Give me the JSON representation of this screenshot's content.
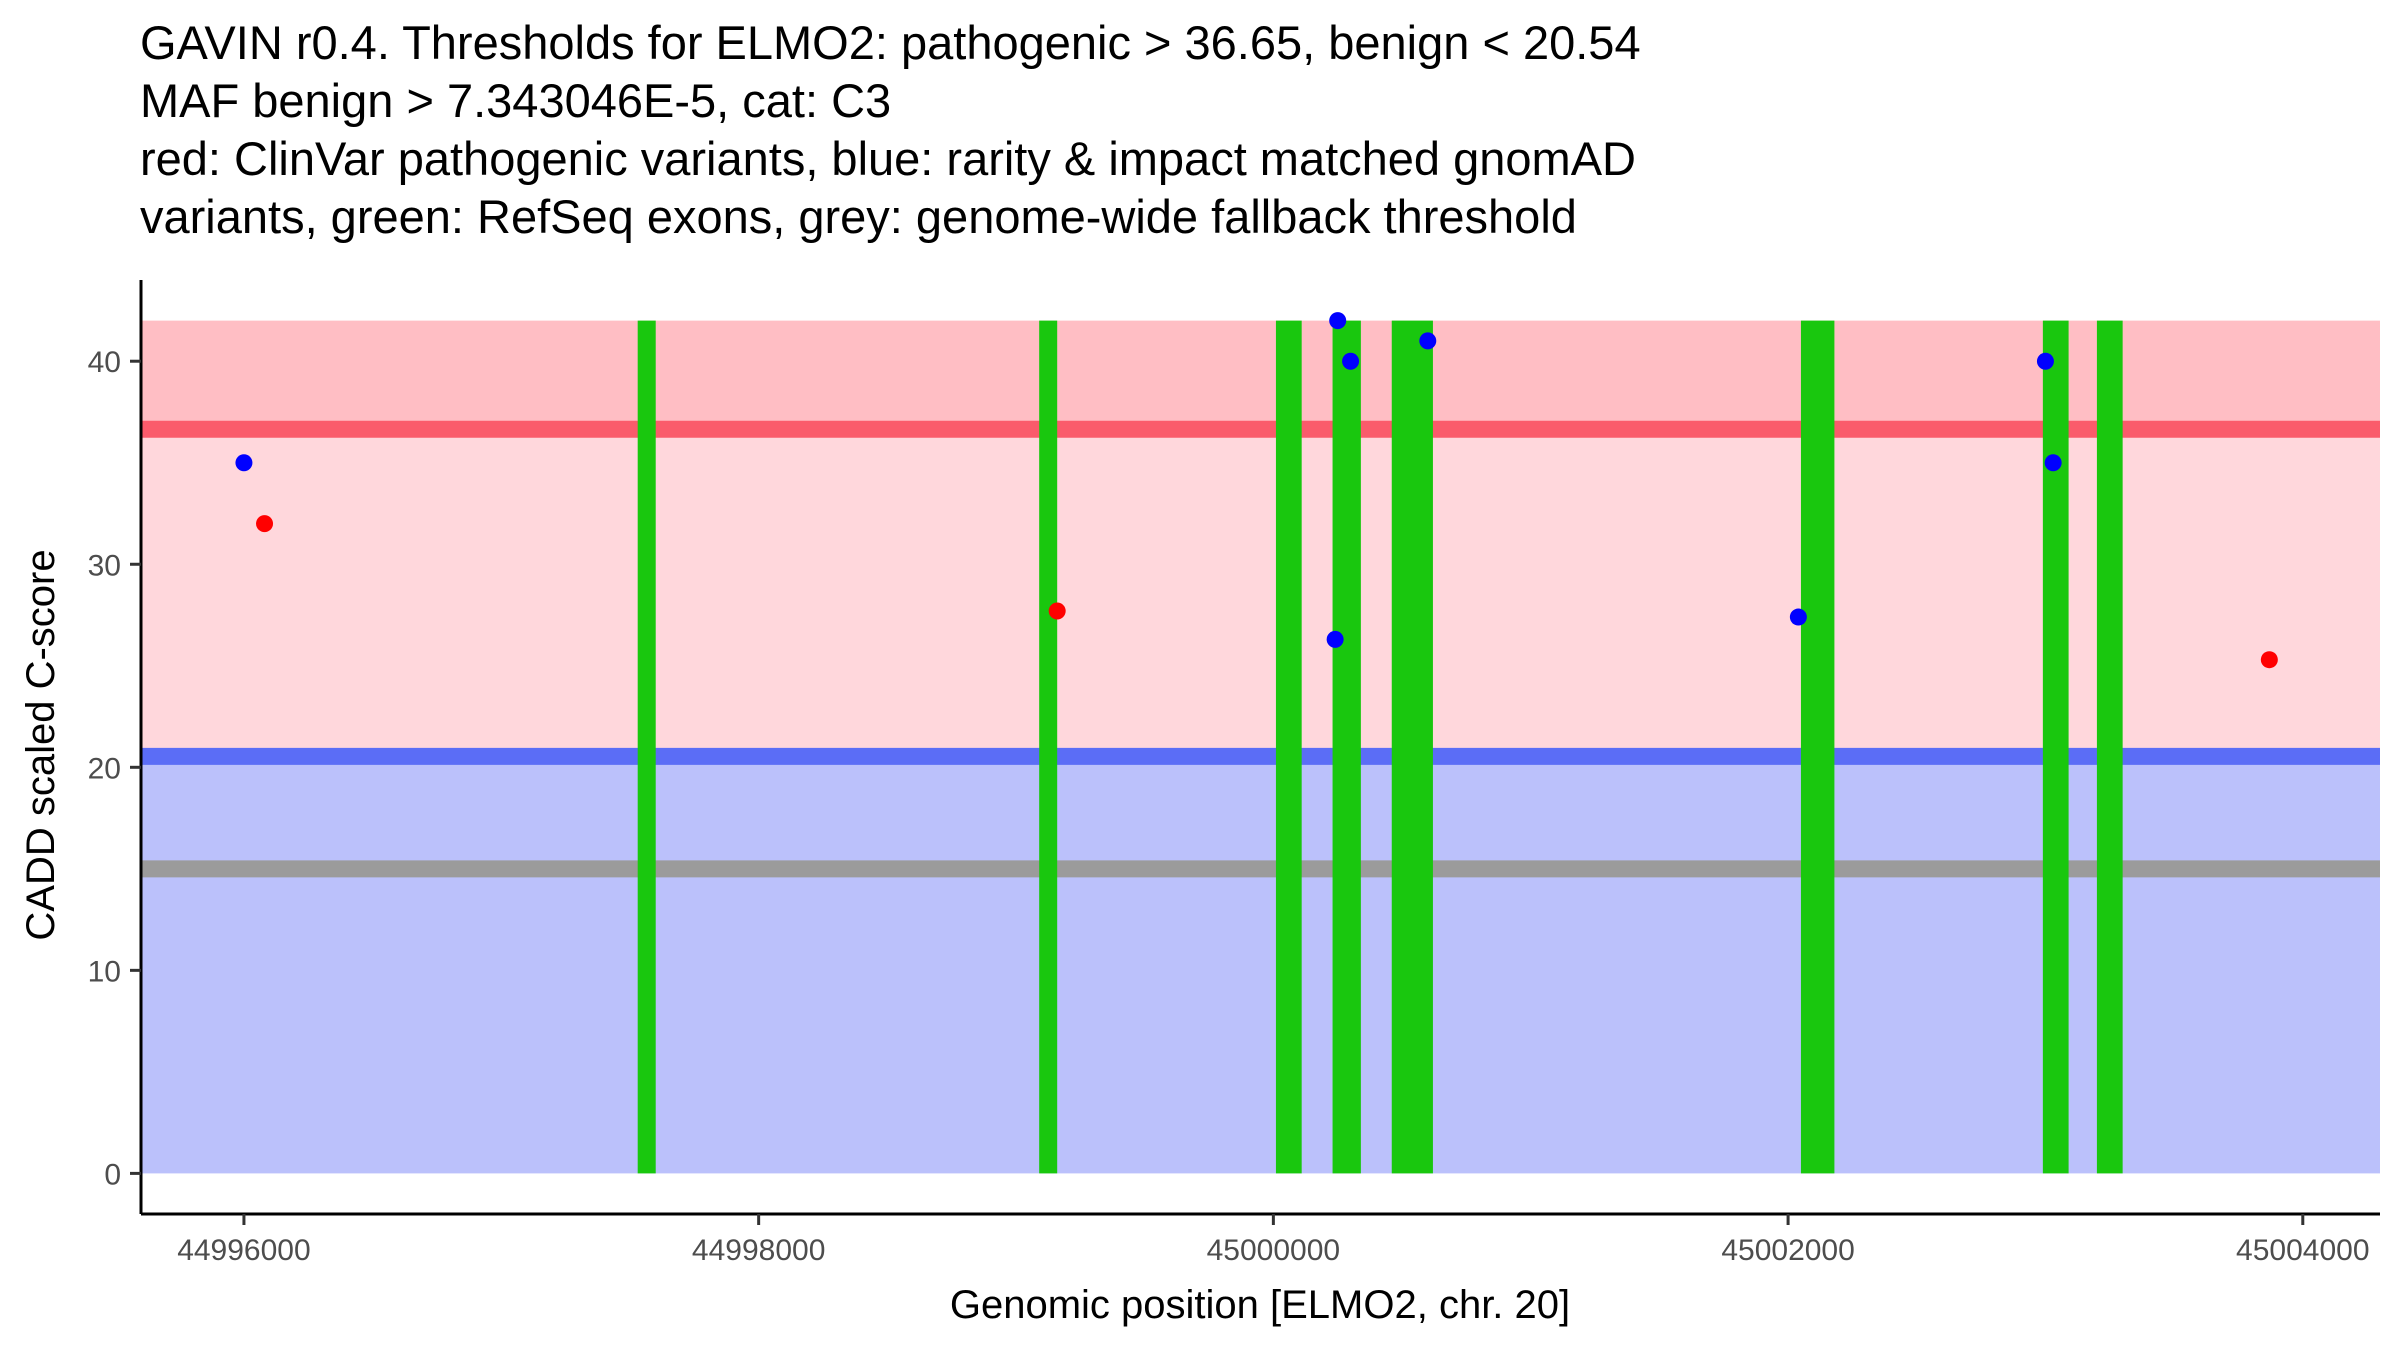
{
  "title": {
    "lines": [
      "GAVIN r0.4. Thresholds for ELMO2: pathogenic > 36.65, benign < 20.54",
      "MAF benign > 7.343046E-5, cat: C3",
      "red: ClinVar pathogenic variants, blue: rarity & impact matched gnomAD",
      "variants, green: RefSeq exons, grey: genome-wide fallback threshold"
    ]
  },
  "chart_data": {
    "type": "scatter",
    "xlabel": "Genomic position [ELMO2, chr. 20]",
    "ylabel": "CADD scaled C-score",
    "xlim": [
      44995600,
      45004300
    ],
    "ylim": [
      -2,
      44
    ],
    "x_ticks": [
      44996000,
      44998000,
      45000000,
      45002000,
      45004000
    ],
    "y_ticks": [
      0,
      10,
      20,
      30,
      40
    ],
    "bands": [
      {
        "name": "pathogenic-zone",
        "y0": 36.65,
        "y1": 42,
        "color": "#ffbec4"
      },
      {
        "name": "intermediate-zone",
        "y0": 20.54,
        "y1": 36.65,
        "color": "#ffd7dc"
      },
      {
        "name": "benign-zone",
        "y0": 0,
        "y1": 20.54,
        "color": "#bbc1fb"
      }
    ],
    "thresholds": [
      {
        "name": "pathogenic-threshold",
        "y": 36.65,
        "color": "#fa5b6b"
      },
      {
        "name": "benign-threshold",
        "y": 20.54,
        "color": "#5b6df6"
      },
      {
        "name": "fallback-threshold",
        "y": 15.0,
        "color": "#9b9b9b"
      }
    ],
    "exons": {
      "color": "#19c70e",
      "y0": 0,
      "y1": 42,
      "ranges": [
        [
          44997530,
          44997600
        ],
        [
          44999090,
          44999160
        ],
        [
          45000010,
          45000110
        ],
        [
          45000230,
          45000340
        ],
        [
          45000460,
          45000620
        ],
        [
          45002050,
          45002180
        ],
        [
          45002990,
          45003090
        ],
        [
          45003200,
          45003300
        ]
      ]
    },
    "series": [
      {
        "name": "ClinVar pathogenic variants",
        "color": "#ff0000",
        "points": [
          {
            "x": 44996080,
            "y": 32.0
          },
          {
            "x": 44999160,
            "y": 27.7
          },
          {
            "x": 45003870,
            "y": 25.3
          }
        ]
      },
      {
        "name": "rarity & impact matched gnomAD variants",
        "color": "#0000ff",
        "points": [
          {
            "x": 44996000,
            "y": 35.0
          },
          {
            "x": 45000250,
            "y": 42.0
          },
          {
            "x": 45000300,
            "y": 40.0
          },
          {
            "x": 45000600,
            "y": 41.0
          },
          {
            "x": 45000240,
            "y": 26.3
          },
          {
            "x": 45002040,
            "y": 27.4
          },
          {
            "x": 45003000,
            "y": 40.0
          },
          {
            "x": 45003030,
            "y": 35.0
          }
        ]
      }
    ]
  }
}
